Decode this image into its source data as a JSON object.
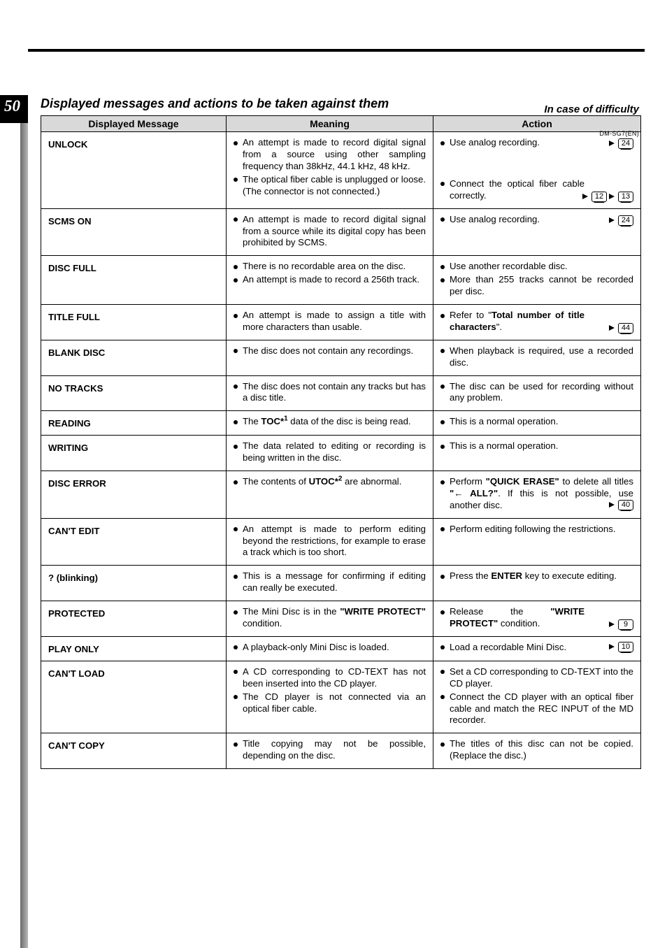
{
  "page_number": "50",
  "header_right": "In case of difficulty",
  "doc_id": "DM-SG7(EN)",
  "section_title": "Displayed messages and actions to be taken against them",
  "columns": {
    "c1": "Displayed Message",
    "c2": "Meaning",
    "c3": "Action"
  },
  "colors": {
    "header_bg": "#d9d9d9",
    "border": "#000000",
    "vertical_bar_from": "#6a6a6a",
    "vertical_bar_to": "#b8b8b8"
  },
  "rows": [
    {
      "dm": "UNLOCK",
      "mn": [
        "An attempt is made to record digital signal from a source using other sampling frequency than 38kHz, 44.1 kHz, 48 kHz.",
        "The optical fiber cable is unplugged or loose. (The connector is not connected.)"
      ],
      "ac": [
        {
          "text": "Use analog recording.",
          "refs": [
            "24"
          ]
        },
        {
          "text": "Connect the optical fiber cable correctly.",
          "refs": [
            "12",
            "13"
          ]
        }
      ],
      "meaning_action_pairs": [
        [
          0,
          0
        ],
        [
          1,
          1
        ]
      ]
    },
    {
      "dm": "SCMS ON",
      "mn": [
        "An attempt is made to record digital signal from a source while its digital copy has been prohibited by SCMS."
      ],
      "ac": [
        {
          "text": "Use analog recording.",
          "refs": [
            "24"
          ]
        }
      ]
    },
    {
      "dm": "DISC FULL",
      "mn": [
        "There is no recordable area on the disc.",
        "An attempt is made to record a 256th track."
      ],
      "ac": [
        {
          "text": "Use another recordable disc."
        },
        {
          "text": "More than 255 tracks cannot be recorded per disc."
        }
      ]
    },
    {
      "dm": "TITLE FULL",
      "mn": [
        "An attempt is made to assign a title with more characters than usable."
      ],
      "ac": [
        {
          "html": "Refer to \"<b>Total number of title characters</b>\".",
          "refs": [
            "44"
          ]
        }
      ]
    },
    {
      "dm": "BLANK DISC",
      "mn": [
        "The disc does not contain any recordings."
      ],
      "ac": [
        {
          "text": "When playback is required, use a recorded disc."
        }
      ]
    },
    {
      "dm": "NO TRACKS",
      "mn": [
        "The disc does not contain any tracks but has a disc title."
      ],
      "ac": [
        {
          "text": "The disc can be used for recording without any problem."
        }
      ]
    },
    {
      "dm": "READING",
      "mn_html": [
        "The <b>TOC*<span class=\"sup\">1</span></b> data of the disc is being read."
      ],
      "ac": [
        {
          "text": "This is a normal operation."
        }
      ]
    },
    {
      "dm": "WRITING",
      "mn": [
        "The data related to editing or recording is being written in the disc."
      ],
      "ac": [
        {
          "text": "This is a normal operation."
        }
      ]
    },
    {
      "dm": "DISC ERROR",
      "mn_html": [
        "The contents of <b>UTOC*<span class=\"sup\">2</span></b> are abnormal."
      ],
      "ac": [
        {
          "html": "Perform <b>\"QUICK ERASE\"</b> to delete all titles <b>\"<span class=\"arrow-glyph\">←</span> ALL?\"</b>. If this is not possible, use another disc.",
          "refs": [
            "40"
          ],
          "refs_inline": true
        }
      ]
    },
    {
      "dm": "CAN'T EDIT",
      "mn": [
        "An attempt is made to perform editing beyond the restrictions, for example to erase a track which is too short."
      ],
      "ac": [
        {
          "text": "Perform editing following the restrictions."
        }
      ]
    },
    {
      "dm": "? (blinking)",
      "mn": [
        "This is a message for confirming if editing can really be executed."
      ],
      "ac": [
        {
          "html": "Press the <b>ENTER</b> key to execute editing."
        }
      ]
    },
    {
      "dm": "PROTECTED",
      "mn_html": [
        "The Mini Disc is in the <b>\"WRITE PROTECT\"</b> condition."
      ],
      "ac": [
        {
          "html": "Release the <b>\"WRITE PROTECT\"</b> condition.",
          "refs": [
            "9"
          ]
        }
      ]
    },
    {
      "dm": "PLAY ONLY",
      "mn": [
        "A playback-only Mini Disc is loaded."
      ],
      "ac": [
        {
          "text": "Load a recordable Mini Disc.",
          "refs": [
            "10"
          ],
          "refs_inline": true
        }
      ]
    },
    {
      "dm": "CAN'T LOAD",
      "mn": [
        "A CD corresponding to CD-TEXT has not been inserted into the CD player.",
        "The CD player is not connected via an optical fiber cable."
      ],
      "ac": [
        {
          "text": "Set a CD corresponding to CD-TEXT into the CD player."
        },
        {
          "text": "Connect the CD player with an optical fiber cable and match the REC INPUT of the MD recorder."
        }
      ]
    },
    {
      "dm": "CAN'T COPY",
      "mn": [
        "Title copying may not be possible, depending on the disc."
      ],
      "ac": [
        {
          "text": "The titles of this disc can not be copied. (Replace the disc.)"
        }
      ]
    }
  ]
}
